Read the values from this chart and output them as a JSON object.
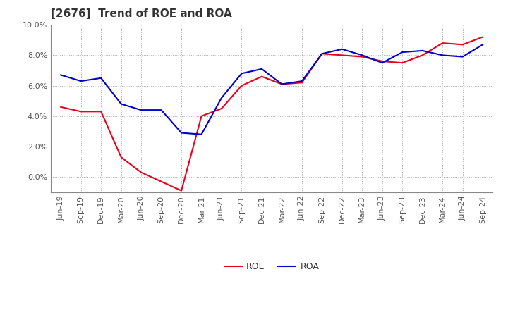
{
  "title": "[2676]  Trend of ROE and ROA",
  "labels": [
    "Jun-19",
    "Sep-19",
    "Dec-19",
    "Mar-20",
    "Jun-20",
    "Sep-20",
    "Dec-20",
    "Mar-21",
    "Jun-21",
    "Sep-21",
    "Dec-21",
    "Mar-22",
    "Jun-22",
    "Sep-22",
    "Dec-22",
    "Mar-23",
    "Jun-23",
    "Sep-23",
    "Dec-23",
    "Mar-24",
    "Jun-24",
    "Sep-24"
  ],
  "roe": [
    4.6,
    4.3,
    4.3,
    1.3,
    0.3,
    -0.3,
    -0.9,
    4.0,
    4.5,
    6.0,
    6.6,
    6.1,
    6.2,
    8.1,
    8.0,
    7.9,
    7.6,
    7.5,
    8.0,
    8.8,
    8.7,
    9.2
  ],
  "roa": [
    6.7,
    6.3,
    6.5,
    4.8,
    4.4,
    4.4,
    2.9,
    2.8,
    5.2,
    6.8,
    7.1,
    6.1,
    6.3,
    8.1,
    8.4,
    8.0,
    7.5,
    8.2,
    8.3,
    8.0,
    7.9,
    8.7
  ],
  "roe_color": "#e8001c",
  "roa_color": "#0000cc",
  "ylim_min": -1.0,
  "ylim_max": 10.0,
  "bg_color": "#ffffff",
  "grid_color": "#aaaaaa",
  "title_fontsize": 11,
  "axis_fontsize": 8,
  "legend_fontsize": 9,
  "yticks": [
    0.0,
    2.0,
    4.0,
    6.0,
    8.0,
    10.0
  ]
}
